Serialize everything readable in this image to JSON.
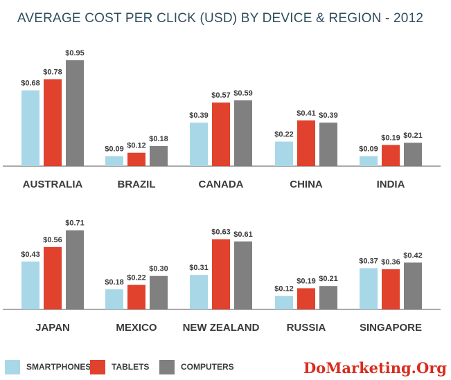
{
  "chart_data": {
    "type": "bar",
    "title": "AVERAGE COST PER CLICK (USD) BY DEVICE & REGION - 2012",
    "value_prefix": "$",
    "series": [
      {
        "name": "SMARTPHONES",
        "color": "#a8d8e8"
      },
      {
        "name": "TABLETS",
        "color": "#e0422d"
      },
      {
        "name": "COMPUTERS",
        "color": "#808080"
      }
    ],
    "groups": [
      {
        "category": "AUSTRALIA",
        "values": [
          0.68,
          0.78,
          0.95
        ]
      },
      {
        "category": "BRAZIL",
        "values": [
          0.09,
          0.12,
          0.18
        ]
      },
      {
        "category": "CANADA",
        "values": [
          0.39,
          0.57,
          0.59
        ]
      },
      {
        "category": "CHINA",
        "values": [
          0.22,
          0.41,
          0.39
        ]
      },
      {
        "category": "INDIA",
        "values": [
          0.09,
          0.19,
          0.21
        ]
      },
      {
        "category": "JAPAN",
        "values": [
          0.43,
          0.56,
          0.71
        ]
      },
      {
        "category": "MEXICO",
        "values": [
          0.18,
          0.22,
          0.3
        ]
      },
      {
        "category": "NEW ZEALAND",
        "values": [
          0.31,
          0.63,
          0.61
        ]
      },
      {
        "category": "RUSSIA",
        "values": [
          0.12,
          0.19,
          0.21
        ]
      },
      {
        "category": "SINGAPORE",
        "values": [
          0.37,
          0.36,
          0.42
        ]
      }
    ],
    "rows": 2,
    "per_row": 5,
    "ylim": [
      0,
      1.0
    ],
    "grid": false,
    "legend_position": "bottom-left"
  },
  "watermark": "DoMarketing.Org"
}
